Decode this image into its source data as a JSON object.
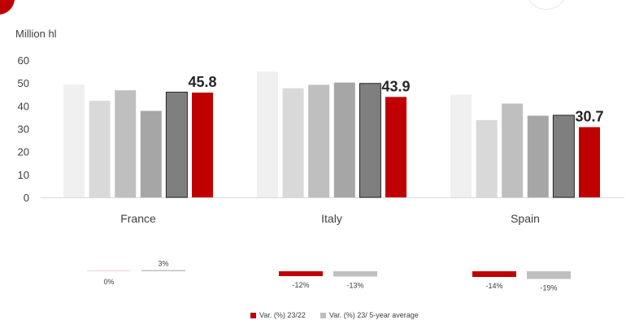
{
  "chart_data": {
    "type": "bar",
    "ylabel": "Million hl",
    "ylim": [
      0,
      60
    ],
    "yticks": [
      0,
      10,
      20,
      30,
      40,
      50,
      60
    ],
    "grid": false,
    "categories": [
      "France",
      "Italy",
      "Spain"
    ],
    "series": [
      {
        "values": [
          49.3,
          55.0,
          45.0
        ],
        "color": "#f0f0f0"
      },
      {
        "values": [
          42.2,
          47.7,
          33.8
        ],
        "color": "#d9d9d9"
      },
      {
        "values": [
          46.8,
          49.2,
          41.0
        ],
        "color": "#bfbfbf"
      },
      {
        "values": [
          37.8,
          50.2,
          35.7
        ],
        "color": "#a6a6a6"
      },
      {
        "values": [
          46.0,
          49.8,
          35.9
        ],
        "color": "#7f7f7f"
      },
      {
        "values": [
          45.8,
          43.9,
          30.7
        ],
        "color": "#c00000"
      }
    ],
    "data_labels": [
      "45.8",
      "43.9",
      "30.7"
    ],
    "variation": {
      "vs_prev_year": {
        "name": "Var. (%) 23/22",
        "color": "#c00000",
        "values": [
          0,
          -12,
          -14
        ],
        "labels": [
          "0%",
          "-12%",
          "-14%"
        ]
      },
      "vs_5yr_avg": {
        "name": "Var. (%) 23/ 5-year average",
        "color": "#bfbfbf",
        "values": [
          3,
          -13,
          -19
        ],
        "labels": [
          "3%",
          "-13%",
          "-19%"
        ]
      }
    }
  }
}
